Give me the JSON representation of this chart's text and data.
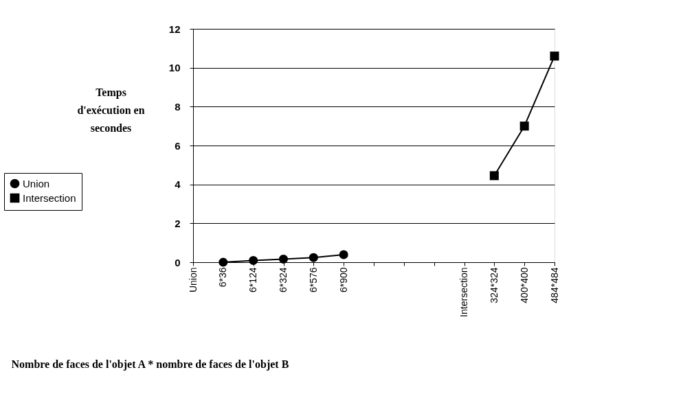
{
  "chart_data": {
    "type": "line",
    "categories": [
      "Union",
      "6*36",
      "6*124",
      "6*324",
      "6*576",
      "6*900",
      null,
      null,
      null,
      "Intersection",
      "324*324",
      "400*400",
      "484*484"
    ],
    "series": [
      {
        "name": "Union",
        "color": "#000000",
        "marker": "circle",
        "values": [
          null,
          0.0,
          0.09,
          0.16,
          0.24,
          0.39,
          null,
          null,
          null,
          null,
          null,
          null,
          null
        ]
      },
      {
        "name": "Intersection",
        "color": "#000000",
        "marker": "square",
        "values": [
          null,
          null,
          null,
          null,
          null,
          null,
          null,
          null,
          null,
          null,
          4.45,
          7.0,
          10.6
        ]
      }
    ],
    "ylabel": "Temps d'exécution en secondes",
    "xlabel": "Nombre de faces de l'objet A * nombre de faces de l'objet B",
    "ylim": [
      0,
      12
    ],
    "yticks": [
      0,
      2,
      4,
      6,
      8,
      10,
      12
    ],
    "grid": "y",
    "legend": "left",
    "line_style": "solid"
  }
}
